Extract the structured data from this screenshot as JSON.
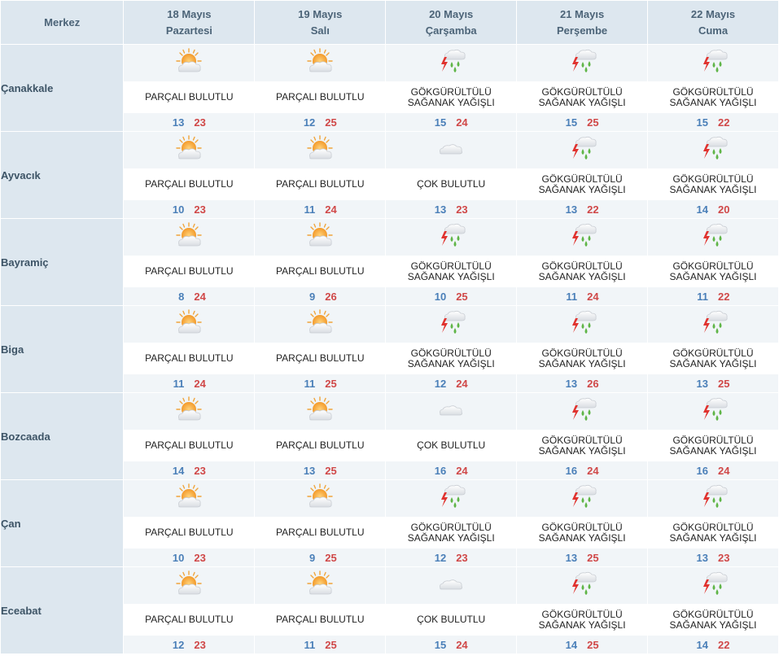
{
  "header": {
    "merkez_label": "Merkez",
    "days": [
      {
        "date": "18 Mayıs",
        "weekday": "Pazartesi"
      },
      {
        "date": "19 Mayıs",
        "weekday": "Salı"
      },
      {
        "date": "20 Mayıs",
        "weekday": "Çarşamba"
      },
      {
        "date": "21 Mayıs",
        "weekday": "Perşembe"
      },
      {
        "date": "22 Mayıs",
        "weekday": "Cuma"
      }
    ]
  },
  "cities": [
    {
      "name": "Çanakkale",
      "shade": "white",
      "days": [
        {
          "icon": "partly-cloudy-icon",
          "desc": "PARÇALI BULUTLU",
          "min": "13",
          "max": "23"
        },
        {
          "icon": "partly-cloudy-icon",
          "desc": "PARÇALI BULUTLU",
          "min": "12",
          "max": "25"
        },
        {
          "icon": "thunderstorm-icon",
          "desc": "GÖKGÜRÜLTÜLÜ\nSAĞANAK YAĞIŞLI",
          "min": "15",
          "max": "24"
        },
        {
          "icon": "thunderstorm-icon",
          "desc": "GÖKGÜRÜLTÜLÜ\nSAĞANAK YAĞIŞLI",
          "min": "15",
          "max": "25"
        },
        {
          "icon": "thunderstorm-icon",
          "desc": "GÖKGÜRÜLTÜLÜ\nSAĞANAK YAĞIŞLI",
          "min": "15",
          "max": "22"
        }
      ]
    },
    {
      "name": "Ayvacık",
      "shade": "white",
      "days": [
        {
          "icon": "partly-cloudy-icon",
          "desc": "PARÇALI BULUTLU",
          "min": "10",
          "max": "23"
        },
        {
          "icon": "partly-cloudy-icon",
          "desc": "PARÇALI BULUTLU",
          "min": "11",
          "max": "24"
        },
        {
          "icon": "cloudy-icon",
          "desc": "ÇOK BULUTLU",
          "min": "13",
          "max": "23"
        },
        {
          "icon": "thunderstorm-icon",
          "desc": "GÖKGÜRÜLTÜLÜ\nSAĞANAK YAĞIŞLI",
          "min": "13",
          "max": "22"
        },
        {
          "icon": "thunderstorm-icon",
          "desc": "GÖKGÜRÜLTÜLÜ\nSAĞANAK YAĞIŞLI",
          "min": "14",
          "max": "20"
        }
      ]
    },
    {
      "name": "Bayramiç",
      "shade": "white",
      "days": [
        {
          "icon": "partly-cloudy-icon",
          "desc": "PARÇALI BULUTLU",
          "min": "8",
          "max": "24"
        },
        {
          "icon": "partly-cloudy-icon",
          "desc": "PARÇALI BULUTLU",
          "min": "9",
          "max": "26"
        },
        {
          "icon": "thunderstorm-icon",
          "desc": "GÖKGÜRÜLTÜLÜ\nSAĞANAK YAĞIŞLI",
          "min": "10",
          "max": "25"
        },
        {
          "icon": "thunderstorm-icon",
          "desc": "GÖKGÜRÜLTÜLÜ\nSAĞANAK YAĞIŞLI",
          "min": "11",
          "max": "24"
        },
        {
          "icon": "thunderstorm-icon",
          "desc": "GÖKGÜRÜLTÜLÜ\nSAĞANAK YAĞIŞLI",
          "min": "11",
          "max": "22"
        }
      ]
    },
    {
      "name": "Biga",
      "shade": "white",
      "days": [
        {
          "icon": "partly-cloudy-icon",
          "desc": "PARÇALI BULUTLU",
          "min": "11",
          "max": "24"
        },
        {
          "icon": "partly-cloudy-icon",
          "desc": "PARÇALI BULUTLU",
          "min": "11",
          "max": "25"
        },
        {
          "icon": "thunderstorm-icon",
          "desc": "GÖKGÜRÜLTÜLÜ\nSAĞANAK YAĞIŞLI",
          "min": "12",
          "max": "24"
        },
        {
          "icon": "thunderstorm-icon",
          "desc": "GÖKGÜRÜLTÜLÜ\nSAĞANAK YAĞIŞLI",
          "min": "13",
          "max": "26"
        },
        {
          "icon": "thunderstorm-icon",
          "desc": "GÖKGÜRÜLTÜLÜ\nSAĞANAK YAĞIŞLI",
          "min": "13",
          "max": "25"
        }
      ]
    },
    {
      "name": "Bozcaada",
      "shade": "white",
      "days": [
        {
          "icon": "partly-cloudy-icon",
          "desc": "PARÇALI BULUTLU",
          "min": "14",
          "max": "23"
        },
        {
          "icon": "partly-cloudy-icon",
          "desc": "PARÇALI BULUTLU",
          "min": "13",
          "max": "25"
        },
        {
          "icon": "cloudy-icon",
          "desc": "ÇOK BULUTLU",
          "min": "16",
          "max": "24"
        },
        {
          "icon": "thunderstorm-icon",
          "desc": "GÖKGÜRÜLTÜLÜ\nSAĞANAK YAĞIŞLI",
          "min": "16",
          "max": "24"
        },
        {
          "icon": "thunderstorm-icon",
          "desc": "GÖKGÜRÜLTÜLÜ\nSAĞANAK YAĞIŞLI",
          "min": "16",
          "max": "24"
        }
      ]
    },
    {
      "name": "Çan",
      "shade": "white",
      "days": [
        {
          "icon": "partly-cloudy-icon",
          "desc": "PARÇALI BULUTLU",
          "min": "10",
          "max": "23"
        },
        {
          "icon": "partly-cloudy-icon",
          "desc": "PARÇALI BULUTLU",
          "min": "9",
          "max": "25"
        },
        {
          "icon": "thunderstorm-icon",
          "desc": "GÖKGÜRÜLTÜLÜ\nSAĞANAK YAĞIŞLI",
          "min": "12",
          "max": "23"
        },
        {
          "icon": "thunderstorm-icon",
          "desc": "GÖKGÜRÜLTÜLÜ\nSAĞANAK YAĞIŞLI",
          "min": "13",
          "max": "25"
        },
        {
          "icon": "thunderstorm-icon",
          "desc": "GÖKGÜRÜLTÜLÜ\nSAĞANAK YAĞIŞLI",
          "min": "13",
          "max": "23"
        }
      ]
    },
    {
      "name": "Eceabat",
      "shade": "white",
      "days": [
        {
          "icon": "partly-cloudy-icon",
          "desc": "PARÇALI BULUTLU",
          "min": "12",
          "max": "23"
        },
        {
          "icon": "partly-cloudy-icon",
          "desc": "PARÇALI BULUTLU",
          "min": "11",
          "max": "25"
        },
        {
          "icon": "cloudy-icon",
          "desc": "ÇOK BULUTLU",
          "min": "15",
          "max": "24"
        },
        {
          "icon": "thunderstorm-icon",
          "desc": "GÖKGÜRÜLTÜLÜ\nSAĞANAK YAĞIŞLI",
          "min": "14",
          "max": "25"
        },
        {
          "icon": "thunderstorm-icon",
          "desc": "GÖKGÜRÜLTÜLÜ\nSAĞANAK YAĞIŞLI",
          "min": "14",
          "max": "22"
        }
      ]
    }
  ],
  "colors": {
    "header_bg": "#dde7ef",
    "min_temp": "#4a7fb8",
    "max_temp": "#d04848",
    "shade_row": "#f1f5f8"
  }
}
